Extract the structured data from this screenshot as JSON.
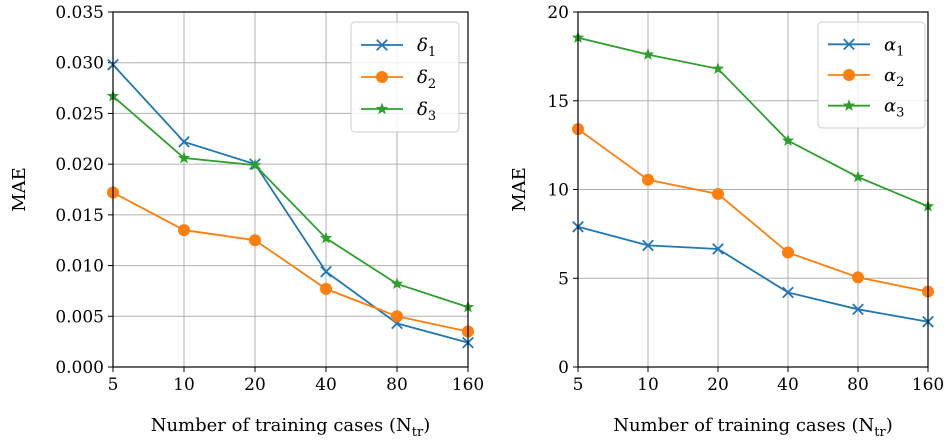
{
  "chart_data": [
    {
      "type": "line",
      "ylabel": "MAE",
      "xlabel_main": "Number of training cases (N",
      "xlabel_sub": "tr",
      "xlabel_close": ")",
      "categories": [
        "5",
        "10",
        "20",
        "40",
        "80",
        "160"
      ],
      "ylim": [
        0,
        0.035
      ],
      "yticks": [
        0.0,
        0.005,
        0.01,
        0.015,
        0.02,
        0.025,
        0.03,
        0.035
      ],
      "ytick_labels": [
        "0.000",
        "0.005",
        "0.010",
        "0.015",
        "0.020",
        "0.025",
        "0.030",
        "0.035"
      ],
      "grid": true,
      "legend_position": "top-right",
      "series": [
        {
          "name": "δ",
          "sub": "1",
          "color": "#1f77b4",
          "marker": "x",
          "values": [
            0.0298,
            0.0222,
            0.02,
            0.0094,
            0.0043,
            0.0024
          ]
        },
        {
          "name": "δ",
          "sub": "2",
          "color": "#ff7f0e",
          "marker": "o",
          "values": [
            0.0172,
            0.0135,
            0.0125,
            0.0077,
            0.005,
            0.0035
          ]
        },
        {
          "name": "δ",
          "sub": "3",
          "color": "#2ca02c",
          "marker": "*",
          "values": [
            0.0267,
            0.0206,
            0.0199,
            0.0127,
            0.0082,
            0.0059
          ]
        }
      ]
    },
    {
      "type": "line",
      "ylabel": "MAE",
      "xlabel_main": "Number of training cases (N",
      "xlabel_sub": "tr",
      "xlabel_close": ")",
      "categories": [
        "5",
        "10",
        "20",
        "40",
        "80",
        "160"
      ],
      "ylim": [
        0,
        20
      ],
      "yticks": [
        0,
        5,
        10,
        15,
        20
      ],
      "ytick_labels": [
        "0",
        "5",
        "10",
        "15",
        "20"
      ],
      "grid": true,
      "legend_position": "top-right",
      "series": [
        {
          "name": "α",
          "sub": "1",
          "color": "#1f77b4",
          "marker": "x",
          "values": [
            7.9,
            6.85,
            6.65,
            4.2,
            3.25,
            2.55
          ]
        },
        {
          "name": "α",
          "sub": "2",
          "color": "#ff7f0e",
          "marker": "o",
          "values": [
            13.4,
            10.55,
            9.75,
            6.45,
            5.05,
            4.25
          ]
        },
        {
          "name": "α",
          "sub": "3",
          "color": "#2ca02c",
          "marker": "*",
          "values": [
            18.55,
            17.6,
            16.8,
            12.75,
            10.7,
            9.05
          ]
        }
      ]
    }
  ]
}
